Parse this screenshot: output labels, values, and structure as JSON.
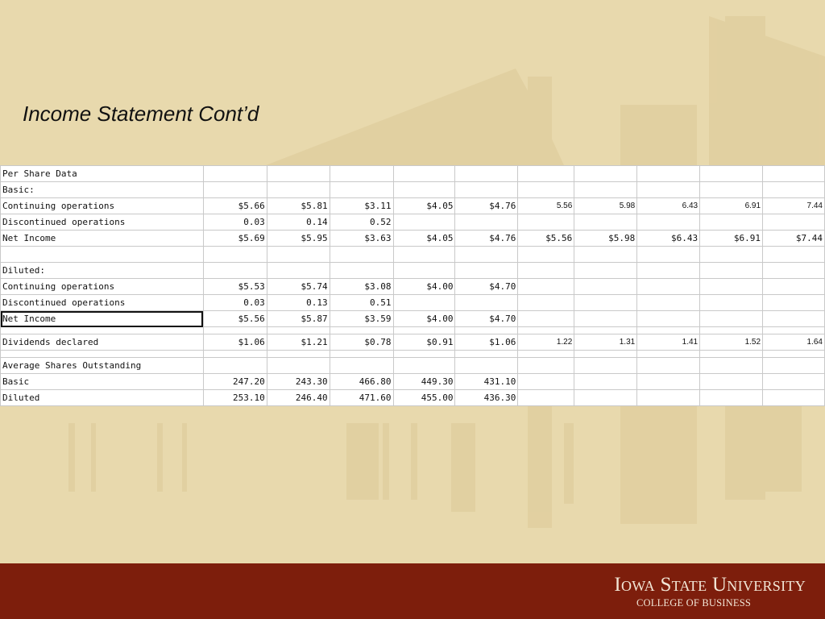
{
  "slide": {
    "title": "Income Statement Cont’d"
  },
  "table": {
    "rows": [
      {
        "label": "Per Share Data",
        "values": [
          "",
          "",
          "",
          "",
          "",
          "",
          "",
          "",
          "",
          ""
        ]
      },
      {
        "label": "Basic:",
        "values": [
          "",
          "",
          "",
          "",
          "",
          "",
          "",
          "",
          "",
          ""
        ]
      },
      {
        "label": "Continuing operations",
        "values": [
          "$5.66",
          "$5.81",
          "$3.11",
          "$4.05",
          "$4.76",
          "5.56",
          "5.98",
          "6.43",
          "6.91",
          "7.44"
        ]
      },
      {
        "label": "Discontinued operations",
        "values": [
          "0.03",
          "0.14",
          "0.52",
          "",
          "",
          "",
          "",
          "",
          "",
          ""
        ]
      },
      {
        "label": "Net Income",
        "values": [
          "$5.69",
          "$5.95",
          "$3.63",
          "$4.05",
          "$4.76",
          "$5.56",
          "$5.98",
          "$6.43",
          "$6.91",
          "$7.44"
        ]
      },
      {
        "label": "",
        "values": [
          "",
          "",
          "",
          "",
          "",
          "",
          "",
          "",
          "",
          ""
        ]
      },
      {
        "label": "Diluted:",
        "values": [
          "",
          "",
          "",
          "",
          "",
          "",
          "",
          "",
          "",
          ""
        ]
      },
      {
        "label": "Continuing operations",
        "values": [
          "$5.53",
          "$5.74",
          "$3.08",
          "$4.00",
          "$4.70",
          "",
          "",
          "",
          "",
          ""
        ]
      },
      {
        "label": "Discontinued operations",
        "values": [
          "0.03",
          "0.13",
          "0.51",
          "",
          "",
          "",
          "",
          "",
          "",
          ""
        ]
      },
      {
        "label": "Net Income",
        "values": [
          "$5.56",
          "$5.87",
          "$3.59",
          "$4.00",
          "$4.70",
          "",
          "",
          "",
          "",
          ""
        ]
      },
      {
        "label": "",
        "values": [
          "",
          "",
          "",
          "",
          "",
          "",
          "",
          "",
          "",
          ""
        ]
      },
      {
        "label": "Dividends declared",
        "values": [
          "$1.06",
          "$1.21",
          "$0.78",
          "$0.91",
          "$1.06",
          "1.22",
          "1.31",
          "1.41",
          "1.52",
          "1.64"
        ]
      },
      {
        "label": "",
        "values": [
          "",
          "",
          "",
          "",
          "",
          "",
          "",
          "",
          "",
          ""
        ]
      },
      {
        "label": "Average Shares Outstanding",
        "values": [
          "",
          "",
          "",
          "",
          "",
          "",
          "",
          "",
          "",
          ""
        ]
      },
      {
        "label": "Basic",
        "values": [
          "247.20",
          "243.30",
          "466.80",
          "449.30",
          "431.10",
          "",
          "",
          "",
          "",
          ""
        ]
      },
      {
        "label": "Diluted",
        "values": [
          "253.10",
          "246.40",
          "471.60",
          "455.00",
          "436.30",
          "",
          "",
          "",
          "",
          ""
        ]
      }
    ]
  },
  "footer": {
    "university": "Iowa State University",
    "college": "COLLEGE OF BUSINESS"
  },
  "colors": {
    "background": "#e8d9ad",
    "footer": "#7d1e0c",
    "brand_text": "#f2e6d6"
  }
}
